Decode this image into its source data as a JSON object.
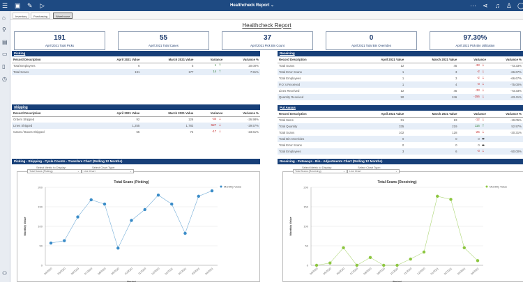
{
  "app": {
    "title": "Healthcheck Report",
    "icons": [
      "menu-logo-icon",
      "save-icon",
      "edit-icon",
      "run-icon",
      "more-icon",
      "share-icon",
      "bell-icon",
      "user-icon",
      "help-icon"
    ]
  },
  "tabs": [
    "Inventory",
    "Purchasing",
    "Warehouse"
  ],
  "report_title": "Healthcheck Report",
  "kpis": [
    {
      "value": "191",
      "label": "April 2021 Total Picks"
    },
    {
      "value": "55",
      "label": "April 2021 Total Cases"
    },
    {
      "value": "37",
      "label": "April 2021 Pick Bin Count"
    },
    {
      "value": "0",
      "label": "April 2021 Total Bin Overrides"
    },
    {
      "value": "97.30%",
      "label": "April 2021 Pick Bin Utilization"
    }
  ],
  "columns": [
    "Record Description",
    "April 2021 Value",
    "March 2021 Value",
    "Variance",
    "Variance %"
  ],
  "sections": {
    "picking": {
      "title": "Picking",
      "rows": [
        [
          "Total Employees",
          "6",
          "5",
          "1",
          "up",
          "20.00%"
        ],
        [
          "Total Scans",
          "191",
          "177",
          "14",
          "up",
          "7.91%"
        ]
      ]
    },
    "shipping": {
      "title": "Shipping",
      "rows": [
        [
          "Orders Shipped",
          "92",
          "126",
          "-34",
          "down",
          "-26.98%"
        ],
        [
          "Lines Shipped",
          "1,255",
          "1,782",
          "-527",
          "down",
          "-29.57%"
        ],
        [
          "Cases / Boxes Shipped",
          "55",
          "72",
          "-17",
          "down",
          "-23.61%"
        ]
      ]
    },
    "receiving": {
      "title": "Receiving",
      "rows": [
        [
          "Total Scans",
          "12",
          "45",
          "-33",
          "down",
          "-73.33%"
        ],
        [
          "Total Error Scans",
          "1",
          "3",
          "-2",
          "down",
          "-66.67%"
        ],
        [
          "Total Employees",
          "1",
          "3",
          "-2",
          "down",
          "-66.67%"
        ],
        [
          "P.O.'s Received",
          "1",
          "4",
          "-3",
          "down",
          "-75.00%"
        ],
        [
          "Lines Received",
          "12",
          "45",
          "-33",
          "down",
          "-73.33%"
        ],
        [
          "Quantity Received",
          "90",
          "246",
          "-156",
          "down",
          "-63.41%"
        ]
      ]
    },
    "putaways": {
      "title": "Put Aways",
      "rows": [
        [
          "Total Items",
          "51",
          "63",
          "-12",
          "down",
          "-19.05%"
        ],
        [
          "Total Quantity",
          "335",
          "219",
          "116",
          "up",
          "52.97%"
        ],
        [
          "Total Scans",
          "102",
          "128",
          "-26",
          "down",
          "-20.31%"
        ],
        [
          "Total Bin Overrides",
          "0",
          "0",
          "0",
          "flat",
          ""
        ],
        [
          "Total Error Scans",
          "0",
          "0",
          "0",
          "flat",
          ""
        ],
        [
          "Total Employees",
          "3",
          "6",
          "-3",
          "down",
          "-50.00%"
        ]
      ]
    }
  },
  "colors": {
    "header": "#173f78",
    "picking_series": "#3a8cc8",
    "receiving_series": "#8cc63f",
    "up": "#2e7d32",
    "down": "#c62828"
  },
  "charts": [
    {
      "header": "Picking - Shipping - Cycle Counts - Transfers Chart (Rolling 12 Months)",
      "metric_label": "Select Metric to Display:",
      "metric_value": "Total Scans (Picking)",
      "type_label": "Select Chart Type:",
      "type_value": "Line Chart"
    },
    {
      "header": "Receiving - Putaways - Bin - Adjustments Chart (Rolling 12 Months)",
      "metric_label": "Select Metric to Display:",
      "metric_value": "Total Scans (Receiving)",
      "type_label": "Select Chart Type:",
      "type_value": "Line Chart"
    }
  ],
  "chart_data": [
    {
      "type": "line",
      "title": "Total Scans (Picking)",
      "ylabel": "Monthly Value",
      "xlabel": "Period",
      "ylim": [
        0,
        200
      ],
      "yticks": [
        0,
        50,
        100,
        150,
        200
      ],
      "grid": true,
      "legend": "top-right",
      "categories": [
        "04/2020",
        "05/2020",
        "06/2020",
        "07/2020",
        "08/2020",
        "09/2020",
        "10/2020",
        "11/2020",
        "12/2020",
        "01/2021",
        "02/2021",
        "03/2021",
        "04/2021"
      ],
      "series": [
        {
          "name": "Monthly Value",
          "values": [
            57,
            63,
            124,
            168,
            157,
            44,
            115,
            143,
            180,
            157,
            82,
            177,
            191
          ]
        }
      ]
    },
    {
      "type": "line",
      "title": "Total Scans (Receiving)",
      "ylabel": "Monthly Value",
      "xlabel": "Period",
      "ylim": [
        0,
        200
      ],
      "yticks": [
        0,
        50,
        100,
        150,
        200
      ],
      "grid": true,
      "legend": "top-right",
      "categories": [
        "04/2020",
        "05/2020",
        "06/2020",
        "07/2020",
        "08/2020",
        "09/2020",
        "10/2020",
        "11/2020",
        "12/2020",
        "01/2021",
        "02/2021",
        "03/2021",
        "04/2021"
      ],
      "series": [
        {
          "name": "Monthly Value",
          "values": [
            0,
            6,
            45,
            0,
            20,
            0,
            0,
            16,
            34,
            177,
            169,
            45,
            12
          ]
        }
      ]
    }
  ]
}
